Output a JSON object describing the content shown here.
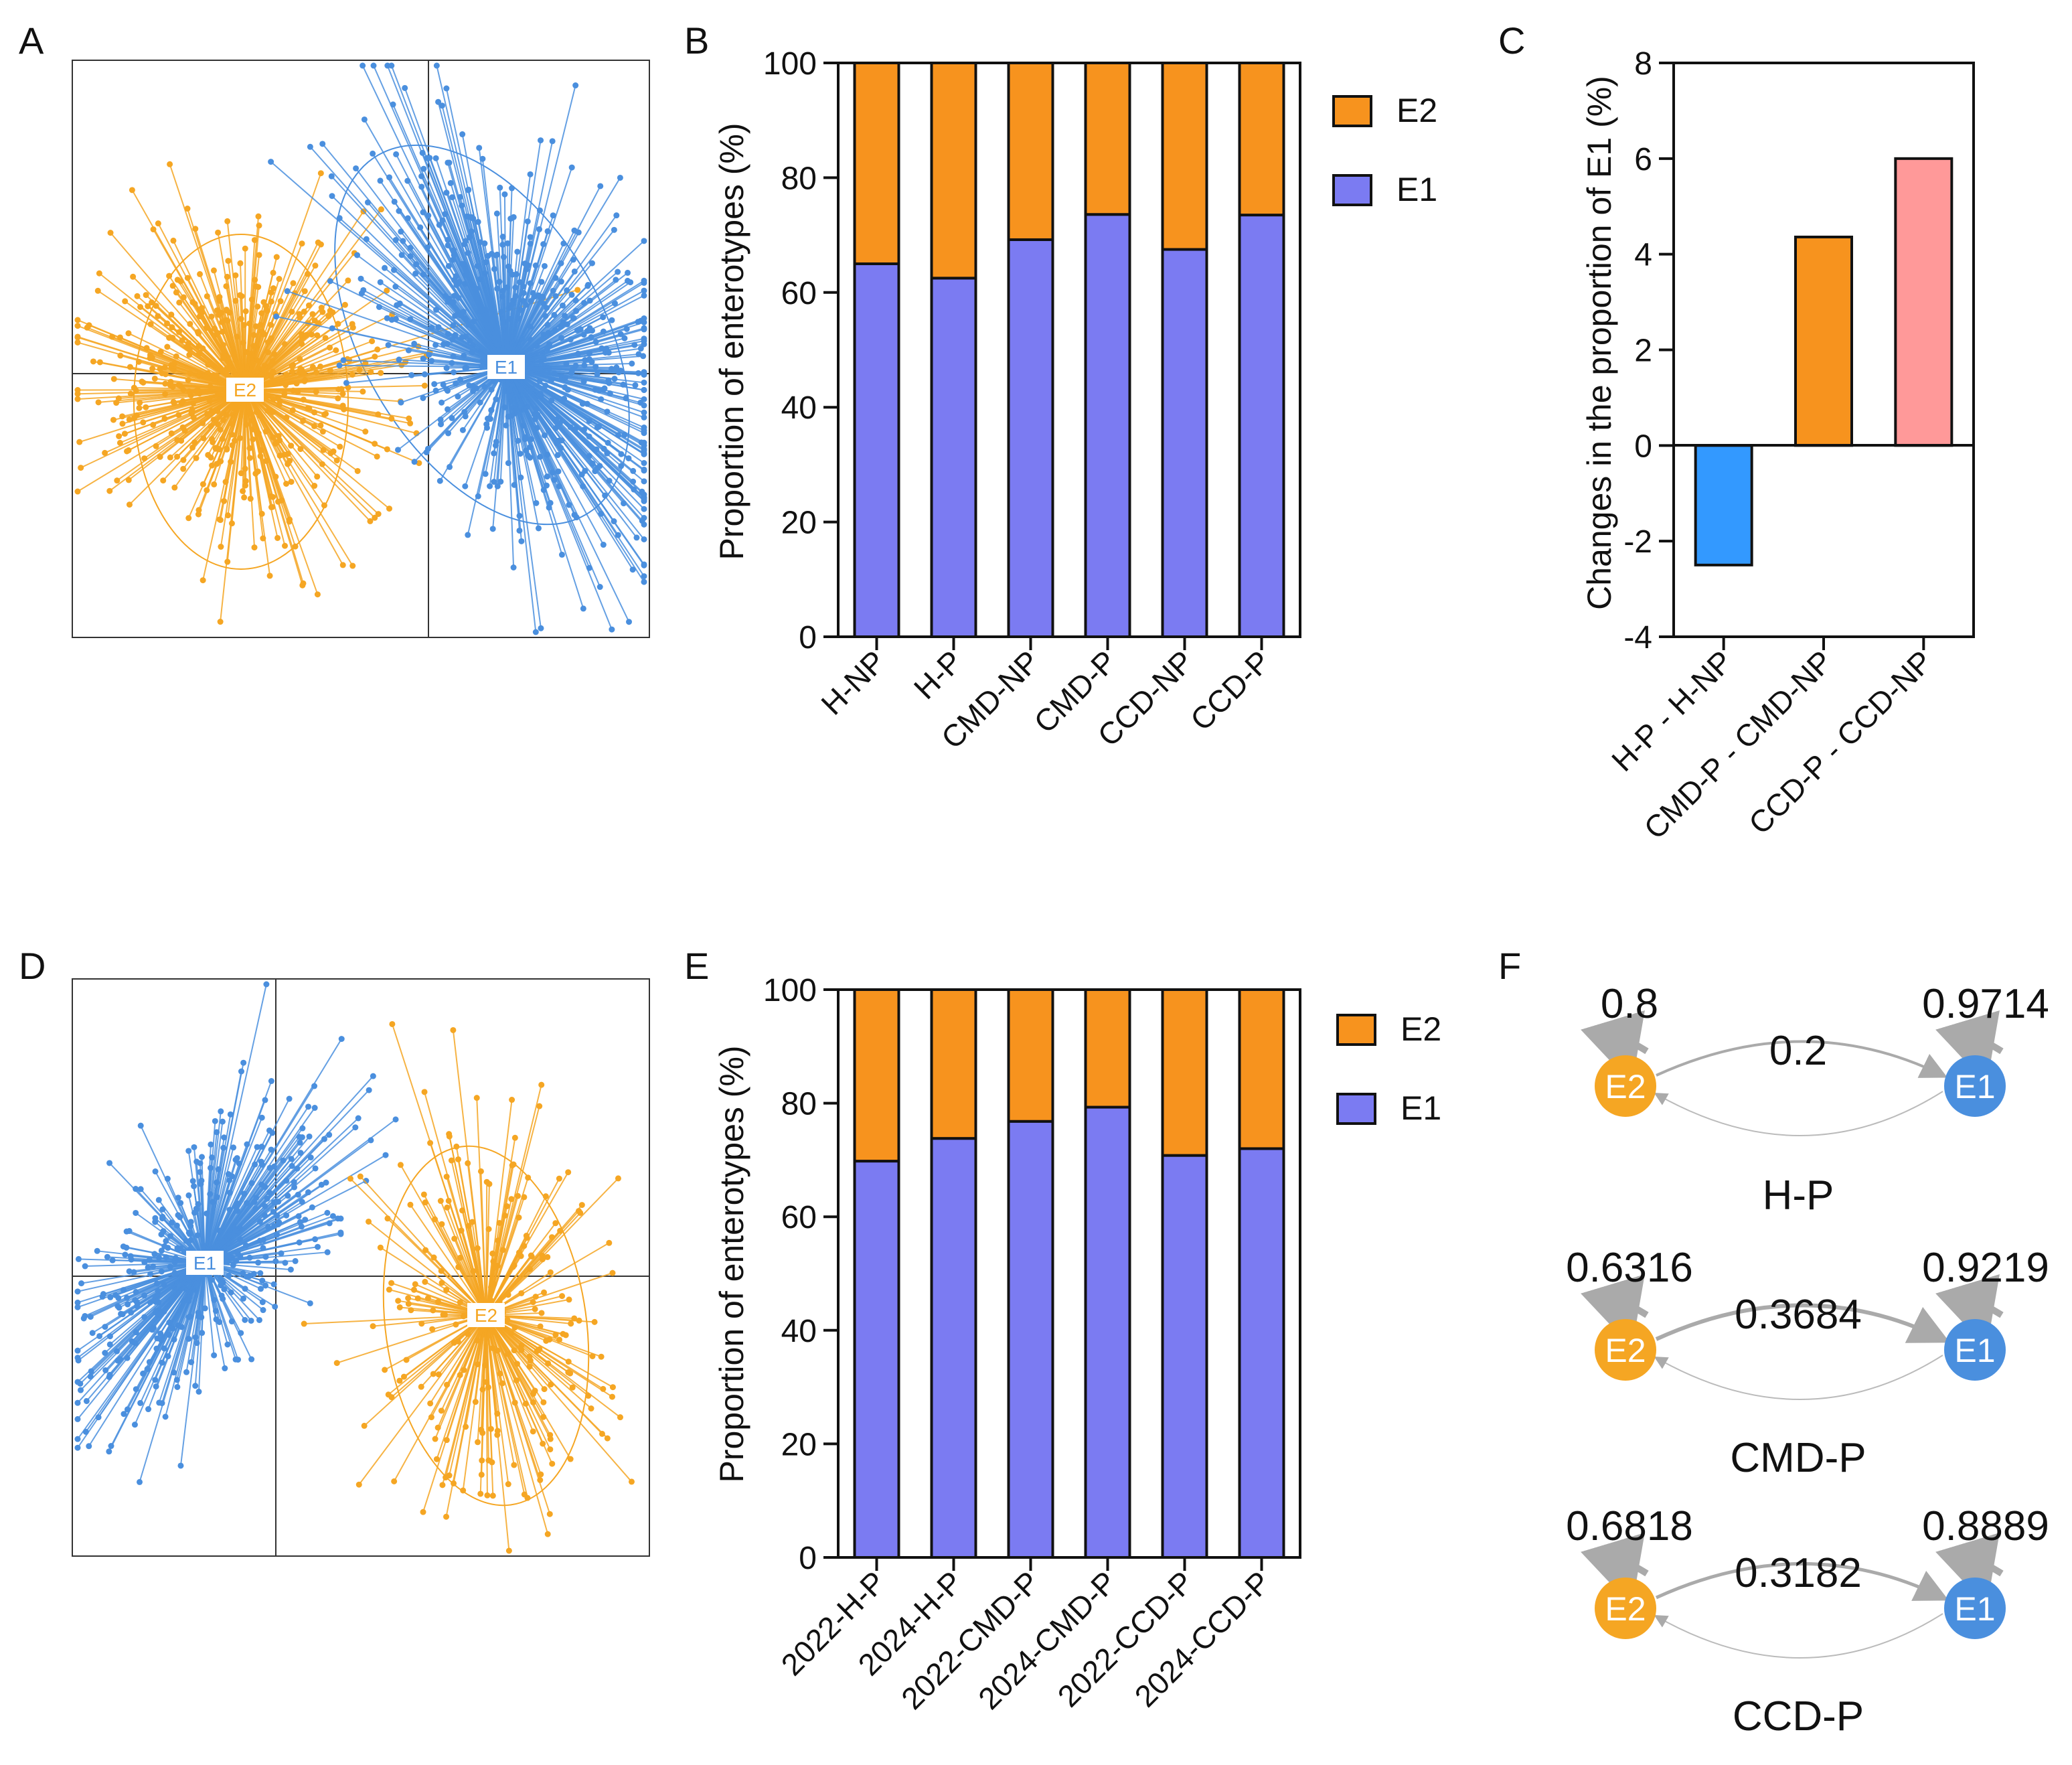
{
  "panels": {
    "a": "A",
    "b": "B",
    "c": "C",
    "d": "D",
    "e": "E",
    "f": "F"
  },
  "colors": {
    "e1": "#7b7bf2",
    "e2": "#f7931e",
    "scatter_e1": "#4a8fde",
    "scatter_e2": "#f5a623",
    "c_neg": "#3399ff",
    "c_mid": "#f7931e",
    "c_pos": "#ff9999",
    "edge": "#aaaaaa"
  },
  "chart_data": [
    {
      "id": "A",
      "type": "scatter",
      "title": "",
      "clusters": [
        {
          "name": "E1",
          "label": "E1",
          "center": [
            1.3,
            0.1
          ]
        },
        {
          "name": "E2",
          "label": "E2",
          "center": [
            -1.6,
            -0.1
          ]
        }
      ]
    },
    {
      "id": "B",
      "type": "bar",
      "stacked": true,
      "categories": [
        "H-NP",
        "H-P",
        "CMD-NP",
        "CMD-P",
        "CCD-NP",
        "CCD-P"
      ],
      "series": [
        {
          "name": "E1",
          "values": [
            65,
            62.5,
            69.2,
            73.6,
            67.5,
            73.5
          ]
        },
        {
          "name": "E2",
          "values": [
            35,
            37.5,
            30.8,
            26.4,
            32.5,
            26.5
          ]
        }
      ],
      "ylabel": "Proportion of enterotypes (%)",
      "ylim": [
        0,
        100
      ],
      "yticks": [
        0,
        20,
        40,
        60,
        80,
        100
      ],
      "legend": [
        "E2",
        "E1"
      ]
    },
    {
      "id": "C",
      "type": "bar",
      "categories": [
        "H-P - H-NP",
        "CMD-P - CMD-NP",
        "CCD-P - CCD-NP"
      ],
      "values": [
        -2.5,
        4.36,
        6.0
      ],
      "ylabel": "Changes in the proportion of E1 (%)",
      "ylim": [
        -4,
        8
      ],
      "yticks": [
        -4,
        -2,
        0,
        2,
        4,
        6,
        8
      ]
    },
    {
      "id": "D",
      "type": "scatter",
      "title": "",
      "clusters": [
        {
          "name": "E1",
          "label": "E1",
          "center": [
            -1.3,
            0.1
          ]
        },
        {
          "name": "E2",
          "label": "E2",
          "center": [
            1.4,
            -0.3
          ]
        }
      ]
    },
    {
      "id": "E",
      "type": "bar",
      "stacked": true,
      "categories": [
        "2022-H-P",
        "2024-H-P",
        "2022-CMD-P",
        "2024-CMD-P",
        "2022-CCD-P",
        "2024-CCD-P"
      ],
      "series": [
        {
          "name": "E1",
          "values": [
            69.8,
            73.8,
            76.8,
            79.3,
            70.8,
            72
          ]
        },
        {
          "name": "E2",
          "values": [
            30.2,
            26.2,
            23.2,
            20.7,
            29.2,
            28
          ]
        }
      ],
      "ylabel": "Proportion of enterotypes (%)",
      "ylim": [
        0,
        100
      ],
      "yticks": [
        0,
        20,
        40,
        60,
        80,
        100
      ],
      "legend": [
        "E2",
        "E1"
      ]
    }
  ],
  "transitions": [
    {
      "group": "H-P",
      "e2_self": "0.8",
      "e1_self": "0.9714",
      "e2_to_e1": "0.2",
      "node_e2": "E2",
      "node_e1": "E1"
    },
    {
      "group": "CMD-P",
      "e2_self": "0.6316",
      "e1_self": "0.9219",
      "e2_to_e1": "0.3684",
      "node_e2": "E2",
      "node_e1": "E1"
    },
    {
      "group": "CCD-P",
      "e2_self": "0.6818",
      "e1_self": "0.8889",
      "e2_to_e1": "0.3182",
      "node_e2": "E2",
      "node_e1": "E1"
    }
  ]
}
